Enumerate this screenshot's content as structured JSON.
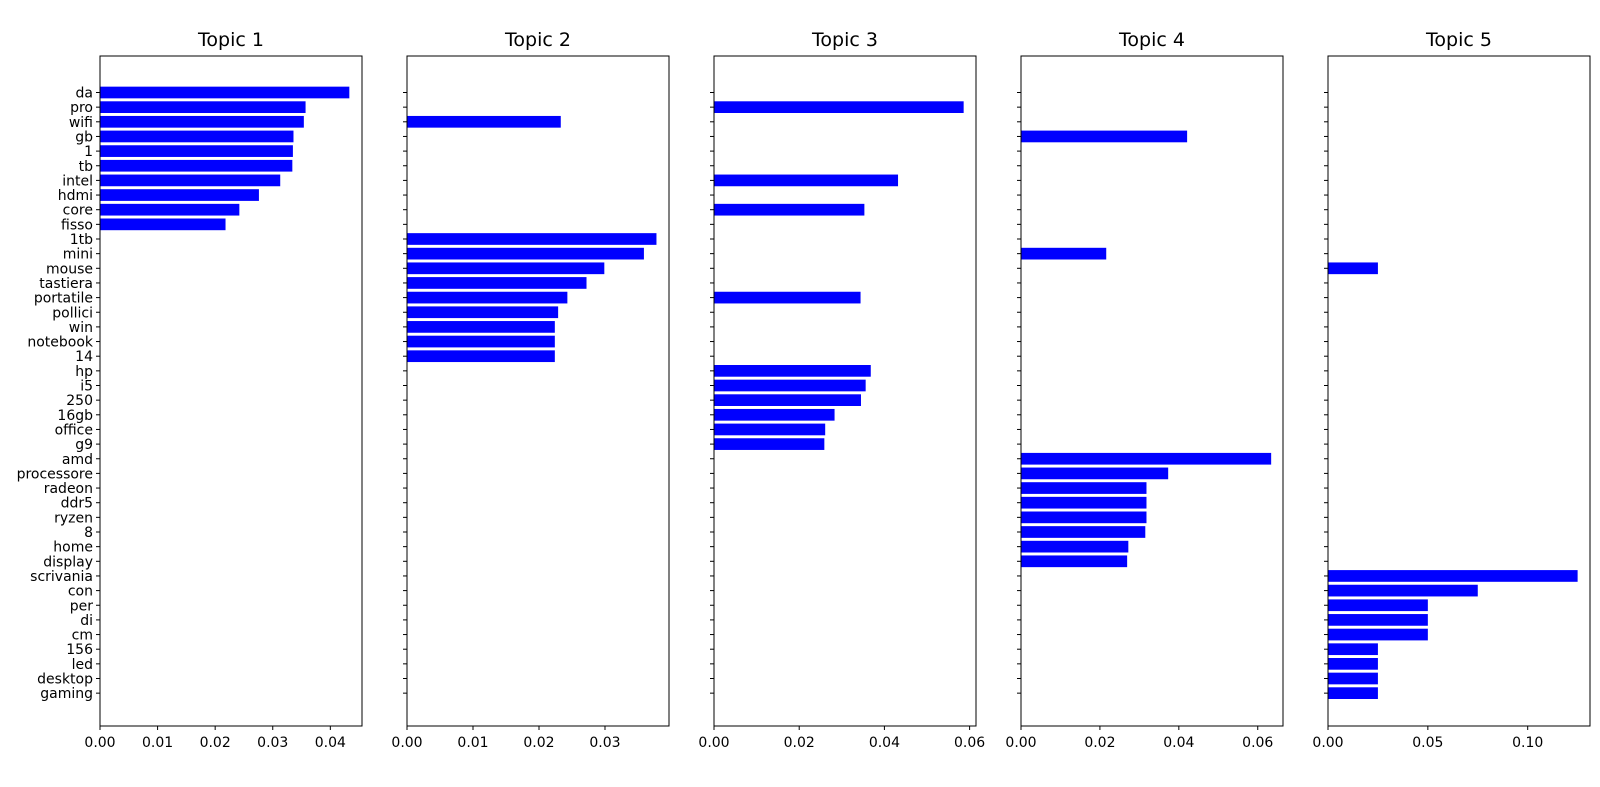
{
  "chart_data": {
    "type": "bar",
    "orientation": "horizontal",
    "shared_y": true,
    "bar_color": "#0000ff",
    "categories": [
      "da",
      "pro",
      "wifi",
      "gb",
      "1",
      "tb",
      "intel",
      "hdmi",
      "core",
      "fisso",
      "1tb",
      "mini",
      "mouse",
      "tastiera",
      "portatile",
      "pollici",
      "win",
      "notebook",
      "14",
      "hp",
      "i5",
      "250",
      "16gb",
      "office",
      "g9",
      "amd",
      "processore",
      "radeon",
      "ddr5",
      "ryzen",
      "8",
      "home",
      "display",
      "scrivania",
      "con",
      "per",
      "di",
      "cm",
      "156",
      "led",
      "desktop",
      "gaming"
    ],
    "subplots": [
      {
        "title": "Topic 1",
        "xlim": [
          0,
          0.0455
        ],
        "xticks": [
          0,
          0.01,
          0.02,
          0.03,
          0.04
        ],
        "xtick_labels": [
          "0.00",
          "0.01",
          "0.02",
          "0.03",
          "0.04"
        ],
        "bars": {
          "da": 0.0433,
          "pro": 0.0357,
          "wifi": 0.0354,
          "gb": 0.0336,
          "1": 0.0335,
          "tb": 0.0334,
          "intel": 0.0313,
          "hdmi": 0.0276,
          "core": 0.0242,
          "fisso": 0.0218
        }
      },
      {
        "title": "Topic 2",
        "xlim": [
          0,
          0.0397
        ],
        "xticks": [
          0,
          0.01,
          0.02,
          0.03
        ],
        "xtick_labels": [
          "0.00",
          "0.01",
          "0.02",
          "0.03"
        ],
        "bars": {
          "wifi": 0.0233,
          "1tb": 0.0378,
          "mini": 0.0359,
          "mouse": 0.0299,
          "tastiera": 0.0272,
          "portatile": 0.0243,
          "pollici": 0.0229,
          "win": 0.0224,
          "notebook": 0.0224,
          "14": 0.0224
        }
      },
      {
        "title": "Topic 3",
        "xlim": [
          0,
          0.0615
        ],
        "xticks": [
          0,
          0.02,
          0.04,
          0.06
        ],
        "xtick_labels": [
          "0.00",
          "0.02",
          "0.04",
          "0.06"
        ],
        "bars": {
          "pro": 0.0586,
          "intel": 0.0432,
          "core": 0.0353,
          "portatile": 0.0344,
          "hp": 0.0368,
          "i5": 0.0356,
          "250": 0.0345,
          "16gb": 0.0283,
          "office": 0.0261,
          "g9": 0.0259
        }
      },
      {
        "title": "Topic 4",
        "xlim": [
          0,
          0.0664
        ],
        "xticks": [
          0,
          0.02,
          0.04,
          0.06
        ],
        "xtick_labels": [
          "0.00",
          "0.02",
          "0.04",
          "0.06"
        ],
        "bars": {
          "gb": 0.0421,
          "mini": 0.0216,
          "amd": 0.0634,
          "processore": 0.0373,
          "radeon": 0.0318,
          "ddr5": 0.0318,
          "ryzen": 0.0318,
          "8": 0.0315,
          "home": 0.0272,
          "display": 0.0269
        }
      },
      {
        "title": "Topic 5",
        "xlim": [
          0,
          0.1312
        ],
        "xticks": [
          0,
          0.05,
          0.1
        ],
        "xtick_labels": [
          "0.00",
          "0.05",
          "0.10"
        ],
        "bars": {
          "mouse": 0.025,
          "scrivania": 0.125,
          "con": 0.075,
          "per": 0.05,
          "di": 0.05,
          "cm": 0.05,
          "156": 0.025,
          "led": 0.025,
          "desktop": 0.025,
          "gaming": 0.025
        }
      }
    ]
  }
}
